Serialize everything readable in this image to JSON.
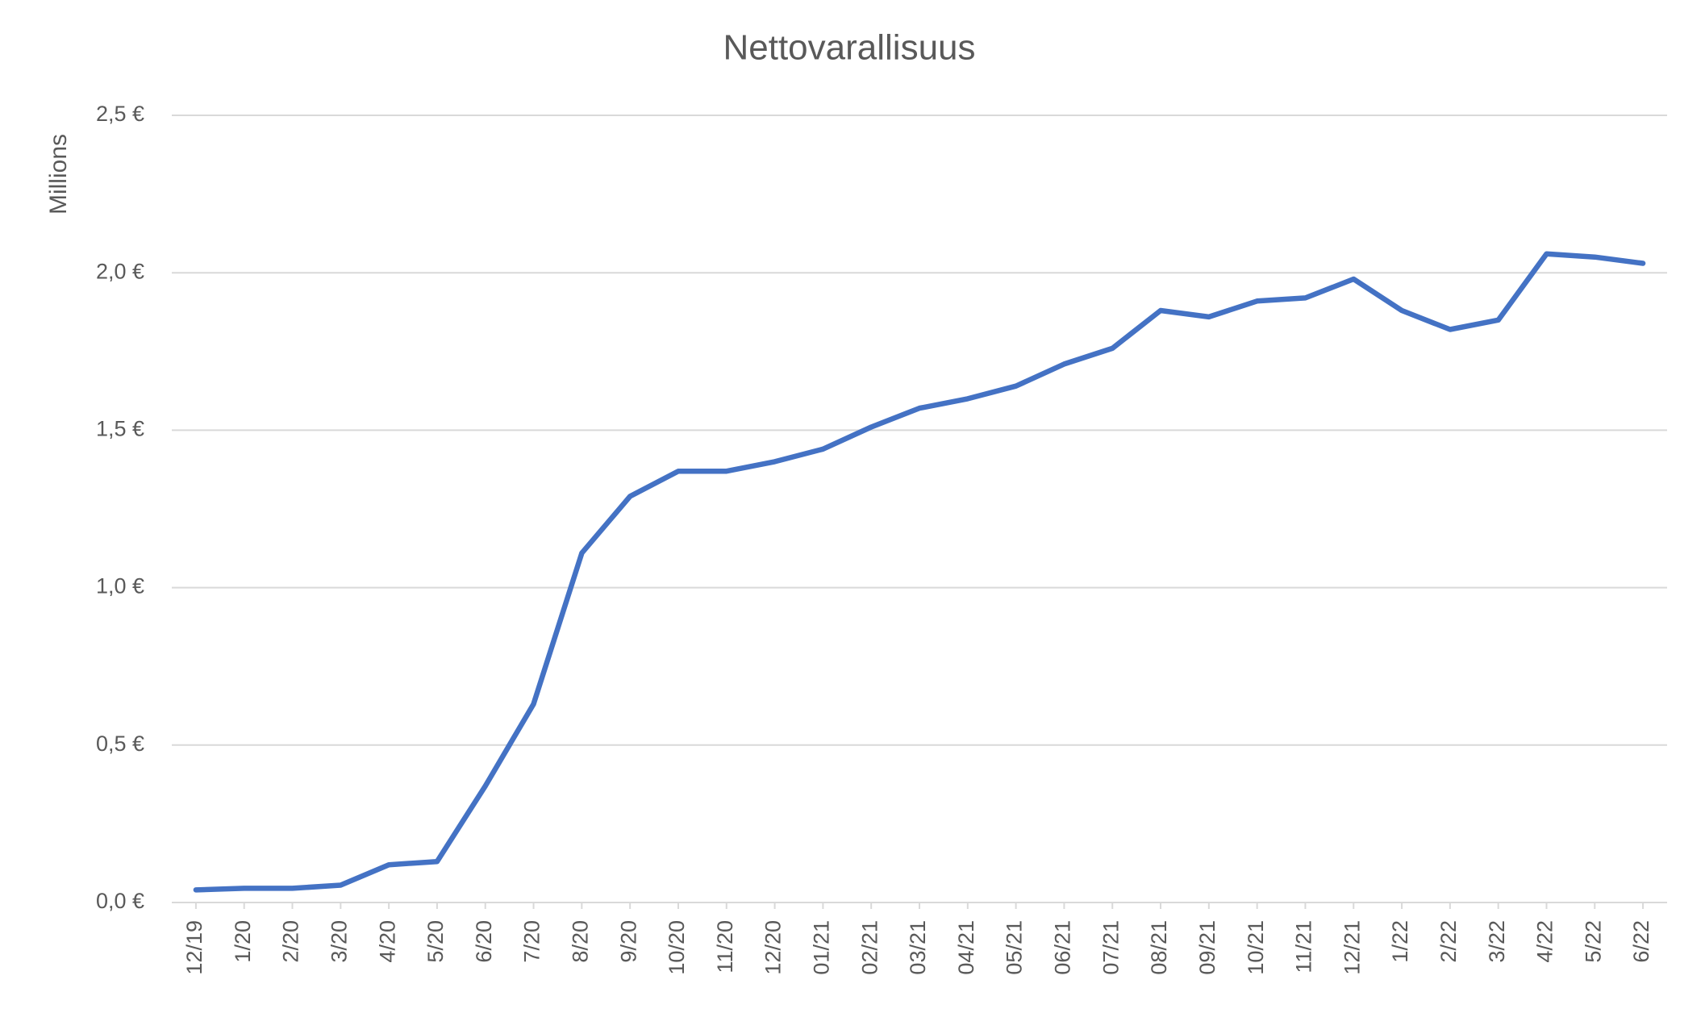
{
  "chart_data": {
    "type": "line",
    "title": "Nettovarallisuus",
    "y_label": "Millions",
    "categories": [
      "12/19",
      "1/20",
      "2/20",
      "3/20",
      "4/20",
      "5/20",
      "6/20",
      "7/20",
      "8/20",
      "9/20",
      "10/20",
      "11/20",
      "12/20",
      "01/21",
      "02/21",
      "03/21",
      "04/21",
      "05/21",
      "06/21",
      "07/21",
      "08/21",
      "09/21",
      "10/21",
      "11/21",
      "12/21",
      "1/22",
      "2/22",
      "3/22",
      "4/22",
      "5/22",
      "6/22"
    ],
    "series": [
      {
        "name": "Nettovarallisuus",
        "color": "#4472c4",
        "values": [
          0.04,
          0.045,
          0.045,
          0.055,
          0.12,
          0.13,
          0.37,
          0.63,
          1.11,
          1.29,
          1.37,
          1.37,
          1.4,
          1.44,
          1.51,
          1.57,
          1.6,
          1.64,
          1.71,
          1.76,
          1.88,
          1.86,
          1.91,
          1.92,
          1.98,
          1.88,
          1.82,
          1.85,
          2.06,
          2.05,
          2.03
        ]
      }
    ],
    "ylim": [
      0,
      2.5
    ],
    "yticks": [
      {
        "value": 0,
        "label": "0,0 €"
      },
      {
        "value": 0.5,
        "label": "0,5 €"
      },
      {
        "value": 1,
        "label": "1,0 €"
      },
      {
        "value": 1.5,
        "label": "1,5 €"
      },
      {
        "value": 2,
        "label": "2,0 €"
      },
      {
        "value": 2.5,
        "label": "2,5 €"
      }
    ],
    "grid": true
  }
}
